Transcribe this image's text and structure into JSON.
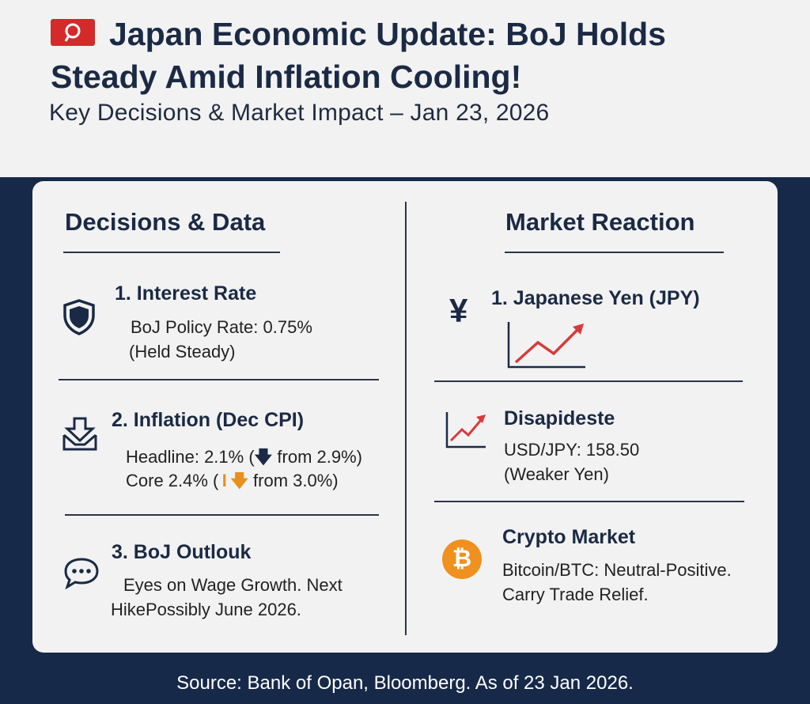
{
  "header": {
    "title": "Japan Economic Update: BoJ Holds Steady Amid Inflation Cooling!",
    "subtitle": "Key Decisions & Market Impact – Jan 23, 2026"
  },
  "left": {
    "heading": "Decisions & Data",
    "interest": {
      "title": "1. Interest Rate",
      "line1": "BoJ Policy Rate: 0.75%",
      "line2": "(Held Steady)"
    },
    "inflation": {
      "title": "2. Inflation (Dec CPI)",
      "headline_a": "Headline: 2.1% (",
      "headline_b": " from 2.9%)",
      "core_a": "Core 2.4% (",
      "core_b": " from 3.0%)"
    },
    "outlook": {
      "title": "3. BoJ Outlouk",
      "line1": "Eyes on Wage Growth. Next",
      "line2": "HikePossibly June 2026."
    }
  },
  "right": {
    "heading": "Market Reaction",
    "yen": {
      "title": "1. Japanese Yen (JPY)",
      "symbol": "¥"
    },
    "usdjpy": {
      "title": "Disapideste",
      "line1": "USD/JPY: 158.50",
      "line2": "(Weaker Yen)"
    },
    "crypto": {
      "title": "Crypto Market",
      "line1": "Bitcoin/BTC: Neutral-Positive.",
      "line2": "Carry Trade Relief.",
      "symbol": "₿"
    }
  },
  "footer": {
    "source": "Source: Bank of Opan, Bloomberg. As of 23 Jan 2026."
  },
  "colors": {
    "navy": "#172949",
    "text": "#1b2a44",
    "flag_red": "#d42a2a",
    "chart_red": "#d93a3a",
    "bitcoin_orange": "#f0901e"
  }
}
